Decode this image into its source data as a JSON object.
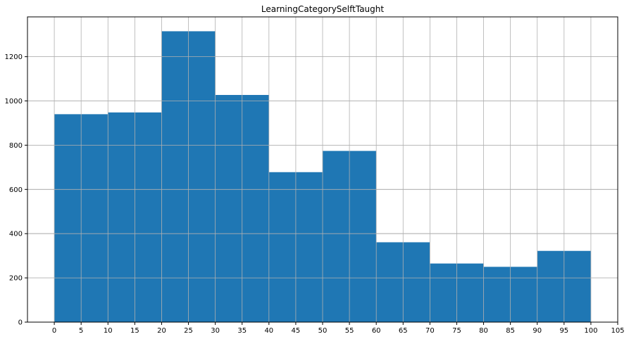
{
  "chart_data": {
    "type": "bar",
    "title": "LearningCategorySelftTaught",
    "xlabel": "",
    "ylabel": "",
    "bins": [
      {
        "start": 0,
        "end": 10,
        "value": 940
      },
      {
        "start": 10,
        "end": 20,
        "value": 948
      },
      {
        "start": 20,
        "end": 30,
        "value": 1315
      },
      {
        "start": 30,
        "end": 40,
        "value": 1027
      },
      {
        "start": 40,
        "end": 50,
        "value": 678
      },
      {
        "start": 50,
        "end": 60,
        "value": 774
      },
      {
        "start": 60,
        "end": 70,
        "value": 361
      },
      {
        "start": 70,
        "end": 80,
        "value": 265
      },
      {
        "start": 80,
        "end": 90,
        "value": 250
      },
      {
        "start": 90,
        "end": 100,
        "value": 322
      }
    ],
    "xticks": [
      "0",
      "5",
      "10",
      "15",
      "20",
      "25",
      "30",
      "35",
      "40",
      "45",
      "50",
      "55",
      "60",
      "65",
      "70",
      "75",
      "80",
      "85",
      "90",
      "95",
      "100",
      "105"
    ],
    "yticks": [
      "0",
      "200",
      "400",
      "600",
      "800",
      "1000",
      "1200"
    ],
    "xlim": [
      -5,
      105
    ],
    "ylim": [
      0,
      1380
    ],
    "grid": true,
    "bar_color": "#1f77b4"
  }
}
